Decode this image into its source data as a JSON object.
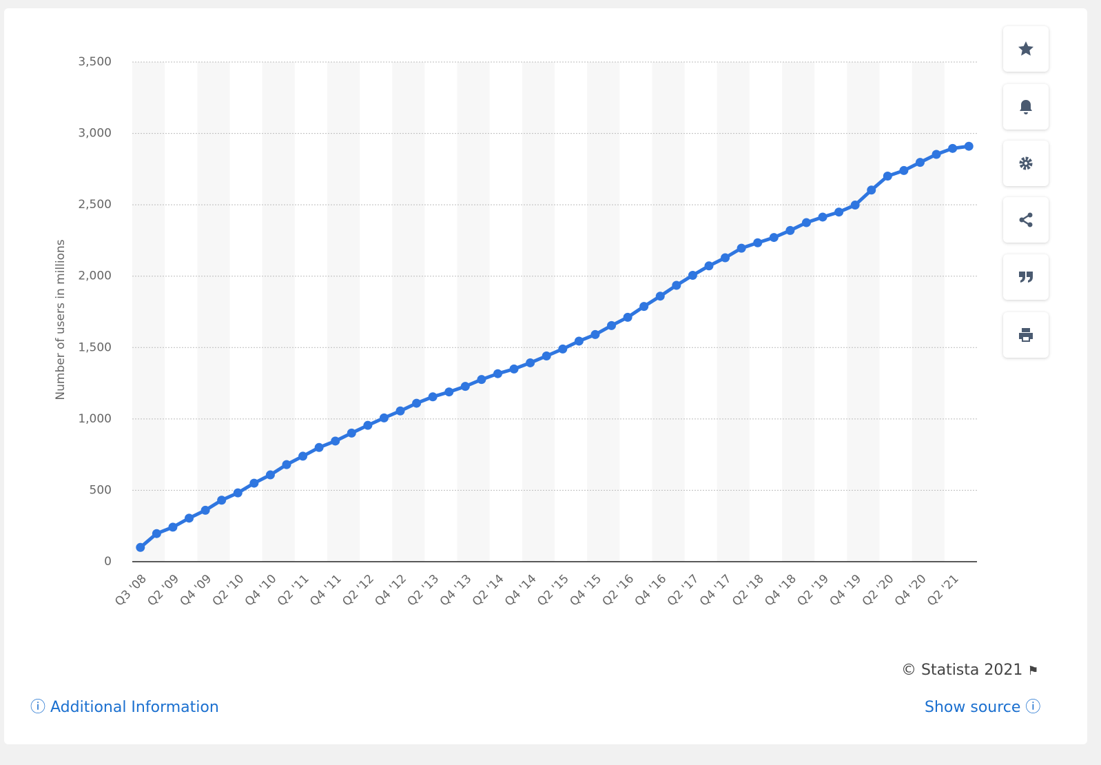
{
  "chart_data": {
    "type": "line",
    "y_label": "Number of users in millions",
    "categories": [
      "Q3 '08",
      null,
      "Q2 '09",
      null,
      "Q4 '09",
      null,
      "Q2 '10",
      null,
      "Q4 '10",
      null,
      "Q2 '11",
      null,
      "Q4 '11",
      null,
      "Q2 '12",
      null,
      "Q4 '12",
      null,
      "Q2 '13",
      null,
      "Q4 '13",
      null,
      "Q2 '14",
      null,
      "Q4 '14",
      null,
      "Q2 '15",
      null,
      "Q4 '15",
      null,
      "Q2 '16",
      null,
      "Q4 '16",
      null,
      "Q2 '17",
      null,
      "Q4 '17",
      null,
      "Q2 '18",
      null,
      "Q4 '18",
      null,
      "Q2 '19",
      null,
      "Q4 '19",
      null,
      "Q2 '20",
      null,
      "Q4 '20",
      null,
      "Q2 '21",
      null
    ],
    "series": [
      {
        "name": "Users",
        "color": "#2f76e0",
        "values": [
          100,
          197,
          242,
          305,
          360,
          431,
          482,
          550,
          608,
          680,
          739,
          800,
          845,
          901,
          955,
          1007,
          1056,
          1110,
          1155,
          1189,
          1228,
          1276,
          1317,
          1350,
          1393,
          1441,
          1490,
          1545,
          1591,
          1654,
          1712,
          1788,
          1860,
          1936,
          2006,
          2072,
          2129,
          2196,
          2234,
          2271,
          2320,
          2375,
          2414,
          2449,
          2498,
          2603,
          2701,
          2740,
          2797,
          2853,
          2895,
          2910
        ]
      }
    ],
    "ylim": [
      0,
      3500
    ],
    "yticks": [
      0,
      {
        "value": 500,
        "label": "500"
      },
      {
        "value": 1000,
        "label": "1,000"
      },
      {
        "value": 1500,
        "label": "1,500"
      },
      {
        "value": 2000,
        "label": "2,000"
      },
      {
        "value": 2500,
        "label": "2,500"
      },
      {
        "value": 3000,
        "label": "3,000"
      },
      {
        "value": 3500,
        "label": "3,500"
      }
    ],
    "grid": true
  },
  "footer": {
    "copyright": "© Statista 2021",
    "additional": "Additional Information",
    "source": "Show source"
  }
}
